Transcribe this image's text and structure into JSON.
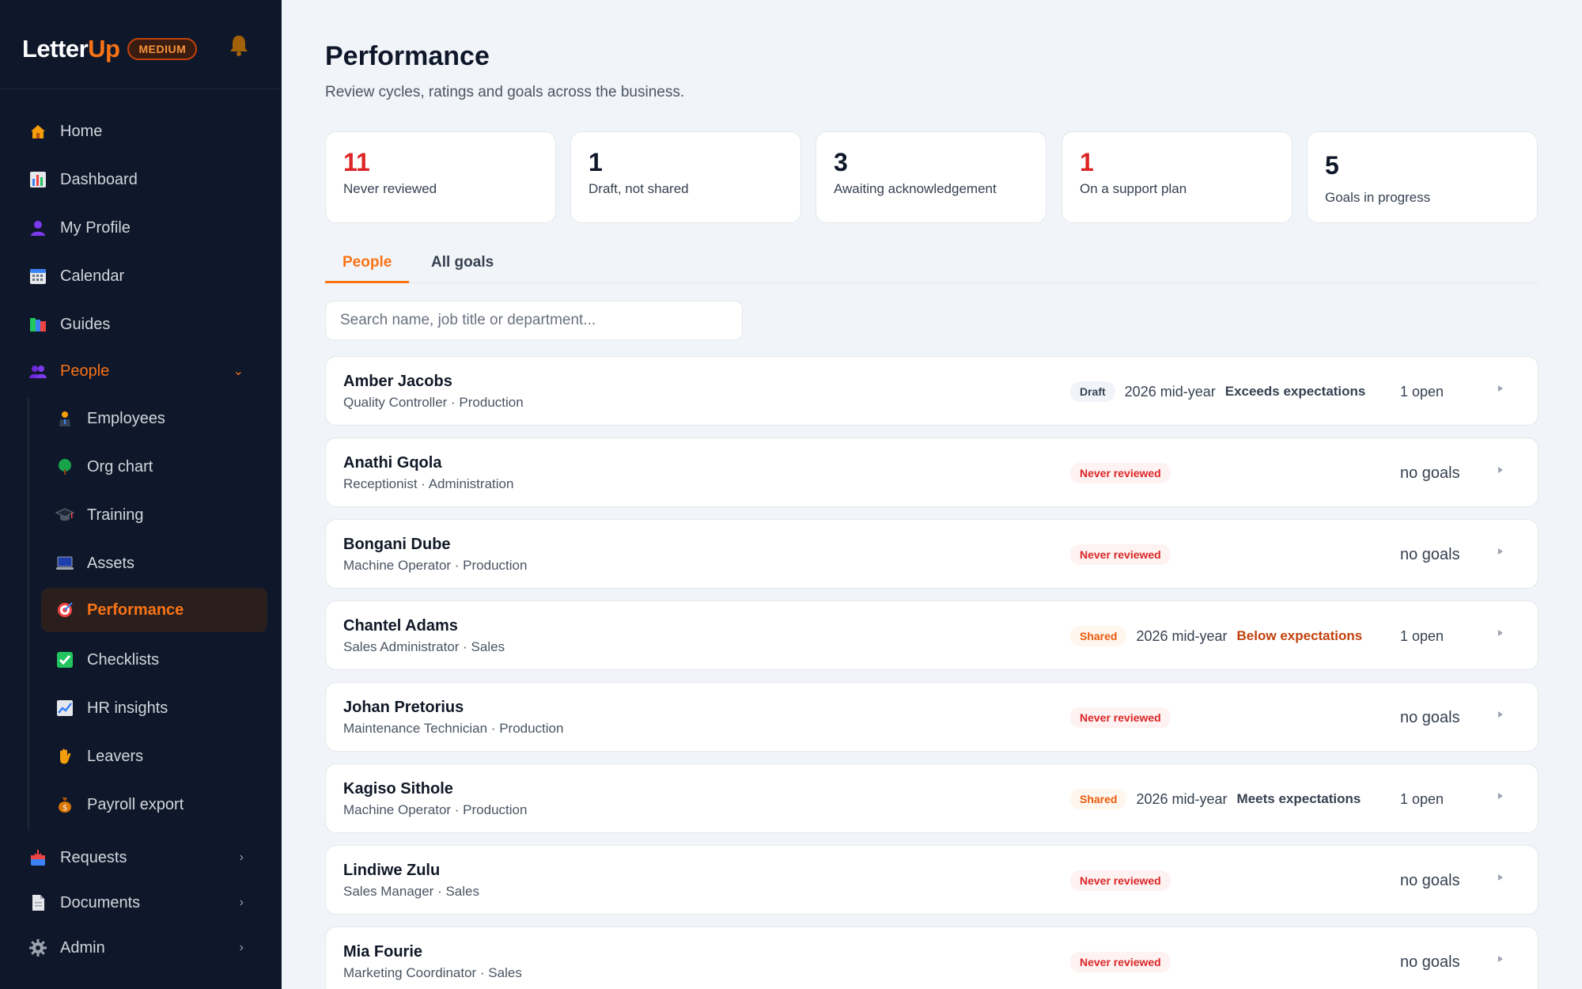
{
  "brand": {
    "name_part1": "Letter",
    "name_part2": "Up",
    "tier": "MEDIUM"
  },
  "sidebar": {
    "items": [
      {
        "label": "Home",
        "icon": "home-icon"
      },
      {
        "label": "Dashboard",
        "icon": "dashboard-icon"
      },
      {
        "label": "My Profile",
        "icon": "profile-icon"
      },
      {
        "label": "Calendar",
        "icon": "calendar-icon"
      },
      {
        "label": "Guides",
        "icon": "guides-icon"
      },
      {
        "label": "People",
        "icon": "people-icon"
      }
    ],
    "people_sub": [
      {
        "label": "Employees",
        "icon": "employee-icon"
      },
      {
        "label": "Org chart",
        "icon": "tree-icon"
      },
      {
        "label": "Training",
        "icon": "graduation-cap-icon"
      },
      {
        "label": "Assets",
        "icon": "laptop-icon"
      },
      {
        "label": "Performance",
        "icon": "target-icon"
      },
      {
        "label": "Checklists",
        "icon": "checkbox-icon"
      },
      {
        "label": "HR insights",
        "icon": "chart-icon"
      },
      {
        "label": "Leavers",
        "icon": "wave-hand-icon"
      },
      {
        "label": "Payroll export",
        "icon": "money-bag-icon"
      }
    ],
    "bottom": [
      {
        "label": "Requests",
        "icon": "inbox-icon"
      },
      {
        "label": "Documents",
        "icon": "document-icon"
      },
      {
        "label": "Admin",
        "icon": "gear-icon"
      }
    ]
  },
  "page": {
    "title": "Performance",
    "subtitle": "Review cycles, ratings and goals across the business."
  },
  "stats": [
    {
      "value": "11",
      "label": "Never reviewed"
    },
    {
      "value": "1",
      "label": "Draft, not shared"
    },
    {
      "value": "3",
      "label": "Awaiting acknowledgement"
    },
    {
      "value": "1",
      "label": "On a support plan"
    },
    {
      "value": "5",
      "label": "Goals in progress"
    }
  ],
  "tabs": [
    "People",
    "All goals"
  ],
  "search": {
    "placeholder": "Search name, job title or department..."
  },
  "rows": [
    {
      "name": "Amber Jacobs",
      "role": "Quality Controller · Production",
      "status": "Draft",
      "cycle": "2026 mid-year",
      "rating": "Exceeds expectations",
      "goals": "1 open"
    },
    {
      "name": "Anathi Gqola",
      "role": "Receptionist · Administration",
      "status": "Never reviewed",
      "goals": "no goals"
    },
    {
      "name": "Bongani Dube",
      "role": "Machine Operator · Production",
      "status": "Never reviewed",
      "goals": "no goals"
    },
    {
      "name": "Chantel Adams",
      "role": "Sales Administrator · Sales",
      "status": "Shared",
      "cycle": "2026 mid-year",
      "rating": "Below expectations",
      "goals": "1 open"
    },
    {
      "name": "Johan Pretorius",
      "role": "Maintenance Technician · Production",
      "status": "Never reviewed",
      "goals": "no goals"
    },
    {
      "name": "Kagiso Sithole",
      "role": "Machine Operator · Production",
      "status": "Shared",
      "cycle": "2026 mid-year",
      "rating": "Meets expectations",
      "goals": "1 open"
    },
    {
      "name": "Lindiwe Zulu",
      "role": "Sales Manager · Sales",
      "status": "Never reviewed",
      "goals": "no goals"
    },
    {
      "name": "Mia Fourie",
      "role": "Marketing Coordinator · Sales",
      "status": "Never reviewed",
      "goals": "no goals"
    }
  ],
  "colors": {
    "accent": "#f97316",
    "sidebar_bg": "#0f172a",
    "danger": "#dc2626",
    "page_bg": "#f1f4f8"
  }
}
